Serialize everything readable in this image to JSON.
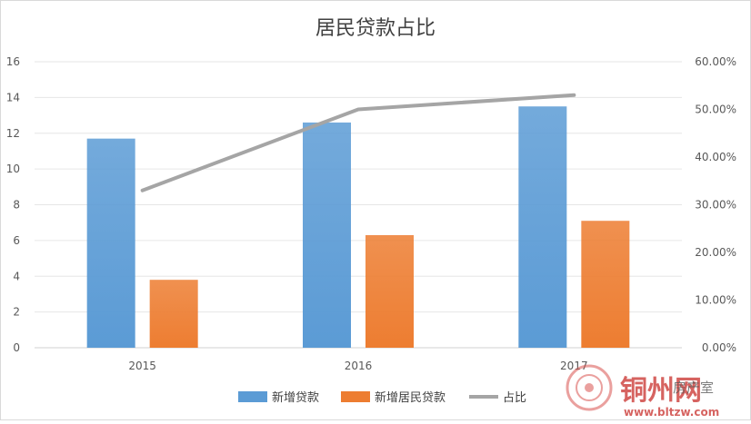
{
  "chart_data": {
    "type": "bar",
    "title": "居民贷款占比",
    "categories": [
      "2015",
      "2016",
      "2017"
    ],
    "series": [
      {
        "name": "新增贷款",
        "type": "bar",
        "axis": "left",
        "values": [
          11.7,
          12.6,
          13.5
        ],
        "color": "#5b9bd5"
      },
      {
        "name": "新增居民贷款",
        "type": "bar",
        "axis": "left",
        "values": [
          3.8,
          6.3,
          7.1
        ],
        "color": "#ed7d31"
      },
      {
        "name": "占比",
        "type": "line",
        "axis": "right",
        "values": [
          0.33,
          0.5,
          0.53
        ],
        "color": "#a5a5a5"
      }
    ],
    "left_axis": {
      "min": 0,
      "max": 16,
      "ticks": [
        "0",
        "2",
        "4",
        "6",
        "8",
        "10",
        "12",
        "14",
        "16"
      ]
    },
    "right_axis": {
      "min": 0,
      "max": 0.6,
      "ticks": [
        "0.00%",
        "10.00%",
        "20.00%",
        "30.00%",
        "40.00%",
        "50.00%",
        "60.00%"
      ]
    },
    "grid": true,
    "legend": "bottom-center"
  },
  "watermark": {
    "name": "铜州网",
    "subtitle": "房产室",
    "url": "www.bltzw.com"
  }
}
